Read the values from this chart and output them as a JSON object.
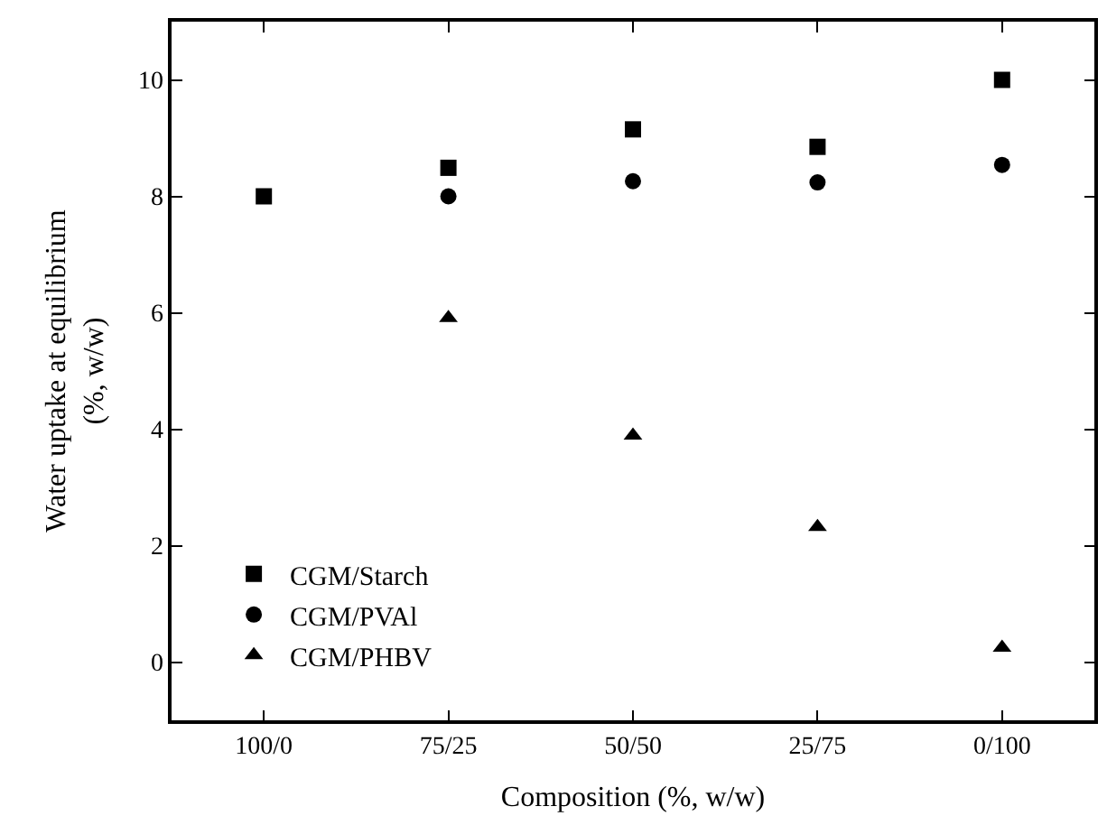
{
  "chart_data": {
    "type": "scatter",
    "xlabel": "Composition (%, w/w)",
    "ylabel": "Water uptake at equilibrium\n(%, w/w)",
    "categories": [
      "100/0",
      "75/25",
      "50/50",
      "25/75",
      "0/100"
    ],
    "series": [
      {
        "name": "CGM/Starch",
        "color": "#000000",
        "marker": "square",
        "values": [
          8.0,
          8.49,
          9.15,
          8.85,
          10.0
        ]
      },
      {
        "name": "CGM/PVAl",
        "color": "#000000",
        "marker": "circle",
        "values": [
          null,
          8.0,
          8.26,
          8.24,
          8.54
        ]
      },
      {
        "name": "CGM/PHBV",
        "color": "#000000",
        "marker": "triangle",
        "values": [
          null,
          5.91,
          3.89,
          2.32,
          0.25
        ]
      }
    ],
    "ylim": [
      -1,
      11
    ],
    "yticks": [
      0,
      2,
      4,
      6,
      8,
      10
    ],
    "legend": "bottom left"
  }
}
